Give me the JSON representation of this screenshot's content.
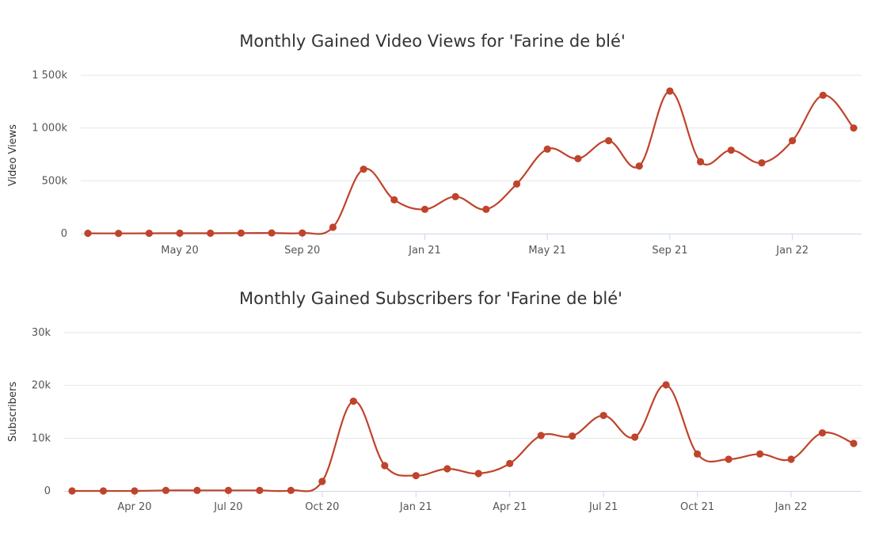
{
  "colors": {
    "series": "#c0432b",
    "grid": "#e6e6e6",
    "axis": "#ccd6eb"
  },
  "chart_data": [
    {
      "type": "line",
      "title": "Monthly Gained Video Views for 'Farine de blé'",
      "ylabel": "Video Views",
      "xlabel": "",
      "ylim": [
        0,
        1500000
      ],
      "yticks": [
        {
          "value": 0,
          "label": "0"
        },
        {
          "value": 500000,
          "label": "500k"
        },
        {
          "value": 1000000,
          "label": "1 000k"
        },
        {
          "value": 1500000,
          "label": "1 500k"
        }
      ],
      "xticks": [
        {
          "index": 3,
          "label": "May 20"
        },
        {
          "index": 7,
          "label": "Sep 20"
        },
        {
          "index": 11,
          "label": "Jan 21"
        },
        {
          "index": 15,
          "label": "May 21"
        },
        {
          "index": 19,
          "label": "Sep 21"
        },
        {
          "index": 23,
          "label": "Jan 22"
        }
      ],
      "x": [
        "Feb 20",
        "Mar 20",
        "Apr 20",
        "May 20",
        "Jun 20",
        "Jul 20",
        "Aug 20",
        "Sep 20",
        "Oct 20",
        "Nov 20",
        "Dec 20",
        "Jan 21",
        "Feb 21",
        "Mar 21",
        "Apr 21",
        "May 21",
        "Jun 21",
        "Jul 21",
        "Aug 21",
        "Sep 21",
        "Oct 21",
        "Nov 21",
        "Dec 21",
        "Jan 22",
        "Feb 22",
        "Mar 22"
      ],
      "series": [
        {
          "name": "Video Views",
          "values": [
            3000,
            2000,
            3000,
            4000,
            4000,
            5000,
            6000,
            6000,
            60000,
            610000,
            320000,
            230000,
            350000,
            230000,
            470000,
            800000,
            710000,
            880000,
            640000,
            1350000,
            680000,
            790000,
            670000,
            880000,
            1310000,
            1000000
          ]
        }
      ]
    },
    {
      "type": "line",
      "title": "Monthly Gained Subscribers for 'Farine de blé'",
      "ylabel": "Subscribers",
      "xlabel": "",
      "ylim": [
        0,
        30000
      ],
      "yticks": [
        {
          "value": 0,
          "label": "0"
        },
        {
          "value": 10000,
          "label": "10k"
        },
        {
          "value": 20000,
          "label": "20k"
        },
        {
          "value": 30000,
          "label": "30k"
        }
      ],
      "xticks": [
        {
          "index": 2,
          "label": "Apr 20"
        },
        {
          "index": 5,
          "label": "Jul 20"
        },
        {
          "index": 8,
          "label": "Oct 20"
        },
        {
          "index": 11,
          "label": "Jan 21"
        },
        {
          "index": 14,
          "label": "Apr 21"
        },
        {
          "index": 17,
          "label": "Jul 21"
        },
        {
          "index": 20,
          "label": "Oct 21"
        },
        {
          "index": 23,
          "label": "Jan 22"
        }
      ],
      "x": [
        "Feb 20",
        "Mar 20",
        "Apr 20",
        "May 20",
        "Jun 20",
        "Jul 20",
        "Aug 20",
        "Sep 20",
        "Oct 20",
        "Nov 20",
        "Dec 20",
        "Jan 21",
        "Feb 21",
        "Mar 21",
        "Apr 21",
        "May 21",
        "Jun 21",
        "Jul 21",
        "Aug 21",
        "Sep 21",
        "Oct 21",
        "Nov 21",
        "Dec 21",
        "Jan 22",
        "Feb 22",
        "Mar 22"
      ],
      "series": [
        {
          "name": "Subscribers",
          "values": [
            0,
            0,
            0,
            100,
            100,
            100,
            100,
            100,
            1800,
            17000,
            4800,
            2900,
            4200,
            3300,
            5200,
            10500,
            10400,
            14300,
            10200,
            20100,
            7000,
            6000,
            7000,
            6000,
            11000,
            9000
          ]
        }
      ]
    }
  ]
}
